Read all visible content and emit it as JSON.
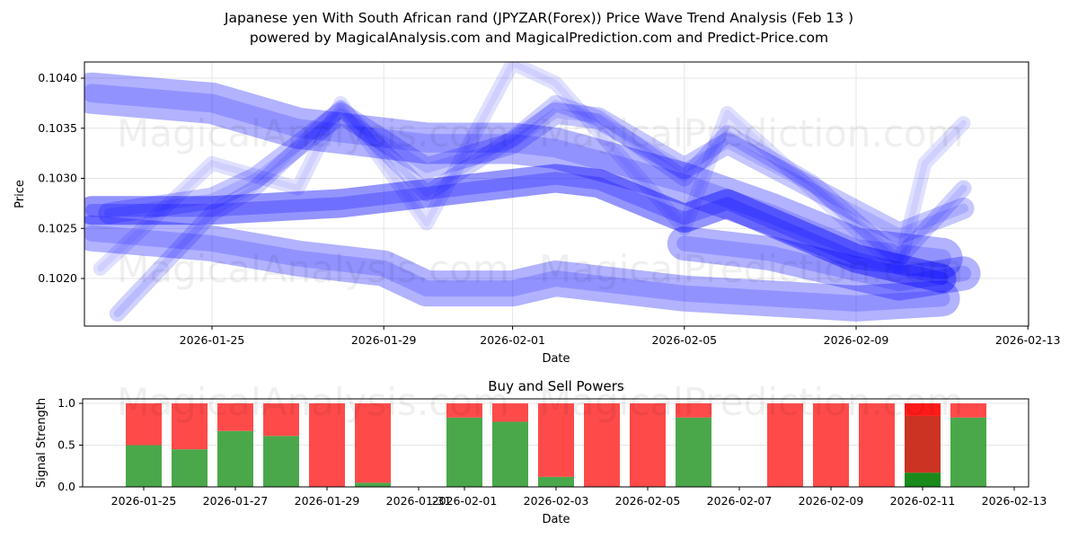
{
  "title_line1": "Japanese yen With South African rand (JPYZAR(Forex)) Price Wave Trend Analysis (Feb 13 )",
  "title_line2": "powered by MagicalAnalysis.com and MagicalPrediction.com and Predict-Price.com",
  "watermarks": [
    "MagicalAnalysis.com",
    "MagicalPrediction.com"
  ],
  "chart_data": [
    {
      "type": "area",
      "title": "",
      "xlabel": "Date",
      "ylabel": "Price",
      "ylim": [
        0.10155,
        0.10415
      ],
      "xlim": [
        "2026-01-22",
        "2026-02-13"
      ],
      "yticks": [
        "0.1020",
        "0.1025",
        "0.1030",
        "0.1035",
        "0.1040"
      ],
      "ytick_values": [
        0.102,
        0.1025,
        0.103,
        0.1035,
        0.104
      ],
      "xticks": [
        "2026-01-25",
        "2026-01-29",
        "2026-02-01",
        "2026-02-05",
        "2026-02-09",
        "2026-02-13"
      ],
      "xtick_days": [
        0,
        4,
        7,
        11,
        15,
        19
      ],
      "grid": true,
      "series": [
        {
          "name": "upper-band",
          "days": [
            -2.8,
            0,
            2,
            5,
            7,
            8,
            11,
            13,
            15,
            17
          ],
          "values": [
            0.10385,
            0.10375,
            0.1035,
            0.10335,
            0.10335,
            0.1033,
            0.10295,
            0.10265,
            0.1023,
            0.1022
          ]
        },
        {
          "name": "middle-band",
          "days": [
            -2.8,
            0,
            3,
            5,
            8,
            9,
            11,
            12,
            15,
            17
          ],
          "values": [
            0.10268,
            0.10268,
            0.10275,
            0.10285,
            0.103,
            0.10295,
            0.1026,
            0.10275,
            0.1022,
            0.102
          ]
        },
        {
          "name": "lower-band",
          "days": [
            -2.8,
            0,
            2,
            4,
            5,
            7,
            8,
            9,
            11,
            15,
            17
          ],
          "values": [
            0.10245,
            0.10235,
            0.1022,
            0.1021,
            0.1019,
            0.1019,
            0.102,
            0.10195,
            0.10185,
            0.10175,
            0.1018
          ]
        },
        {
          "name": "wave-1",
          "days": [
            -2.4,
            0,
            1,
            3,
            5,
            7,
            8,
            9,
            11,
            12,
            14,
            16,
            17.5
          ],
          "values": [
            0.10265,
            0.1028,
            0.103,
            0.10365,
            0.1031,
            0.10335,
            0.10365,
            0.1036,
            0.1031,
            0.10335,
            0.1029,
            0.10245,
            0.1027
          ]
        },
        {
          "name": "wave-2",
          "days": [
            -2.2,
            0,
            1,
            3,
            5,
            7,
            8,
            9,
            11,
            12,
            14,
            16,
            17.5
          ],
          "values": [
            0.10165,
            0.10265,
            0.1029,
            0.1037,
            0.10285,
            0.1034,
            0.10375,
            0.1036,
            0.103,
            0.10345,
            0.10295,
            0.1022,
            0.1029
          ]
        },
        {
          "name": "wave-3",
          "days": [
            -2.6,
            0,
            2,
            3,
            5,
            7,
            8,
            11,
            12,
            16,
            16.6,
            17.5
          ],
          "values": [
            0.1021,
            0.10315,
            0.1029,
            0.10375,
            0.10255,
            0.10415,
            0.10395,
            0.1025,
            0.10365,
            0.1021,
            0.10315,
            0.10355
          ]
        },
        {
          "name": "tail-band",
          "days": [
            11,
            13,
            15,
            16,
            17.5
          ],
          "values": [
            0.10235,
            0.10225,
            0.10205,
            0.10195,
            0.10205
          ]
        }
      ]
    },
    {
      "type": "bar",
      "title": "Buy and Sell Powers",
      "xlabel": "Date",
      "ylabel": "Signal Strength",
      "ylim": [
        0,
        1.05
      ],
      "yticks": [
        "0.0",
        "0.5",
        "1.0"
      ],
      "ytick_values": [
        0,
        0.5,
        1.0
      ],
      "xticks": [
        "2026-01-25",
        "2026-01-27",
        "2026-01-29",
        "2026-01-31",
        "2026-02-01",
        "2026-02-03",
        "2026-02-05",
        "2026-02-07",
        "2026-02-09",
        "2026-02-11",
        "2026-02-13"
      ],
      "xtick_days": [
        0,
        2,
        4,
        6,
        7,
        9,
        11,
        13,
        15,
        17,
        19
      ],
      "categories": [
        "2026-01-25",
        "2026-01-26",
        "2026-01-27",
        "2026-01-28",
        "2026-01-29",
        "2026-01-30",
        "2026-02-01",
        "2026-02-02",
        "2026-02-03",
        "2026-02-04",
        "2026-02-05",
        "2026-02-06",
        "2026-02-08",
        "2026-02-09",
        "2026-02-10",
        "2026-02-11",
        "2026-02-12"
      ],
      "days": [
        0,
        1,
        2,
        3,
        4,
        5,
        7,
        8,
        9,
        10,
        11,
        12,
        14,
        15,
        16,
        17,
        18
      ],
      "series": [
        {
          "name": "Buy",
          "color": "#4aa84a",
          "values": [
            0.5,
            0.45,
            0.67,
            0.61,
            0,
            0.05,
            0.83,
            0.78,
            0.12,
            0,
            0,
            0.83,
            0,
            0,
            0,
            0,
            0.83
          ]
        },
        {
          "name": "Sell",
          "color": "#ff4a4a",
          "values": [
            0.5,
            0.55,
            0.33,
            0.39,
            1,
            0.95,
            0.17,
            0.22,
            0.88,
            1,
            1,
            0.17,
            1,
            1,
            1,
            0,
            0.17
          ]
        }
      ],
      "special_bar": {
        "date": "2026-02-11",
        "day": 17,
        "segments": [
          {
            "name": "Buy",
            "from": 0,
            "to": 0.17,
            "color": "#1a8a1a"
          },
          {
            "name": "Sell (overlap)",
            "from": 0.17,
            "to": 0.85,
            "color": "#cc3322"
          },
          {
            "name": "Sell",
            "from": 0.85,
            "to": 1.0,
            "color": "#ff1a1a"
          }
        ]
      }
    }
  ]
}
